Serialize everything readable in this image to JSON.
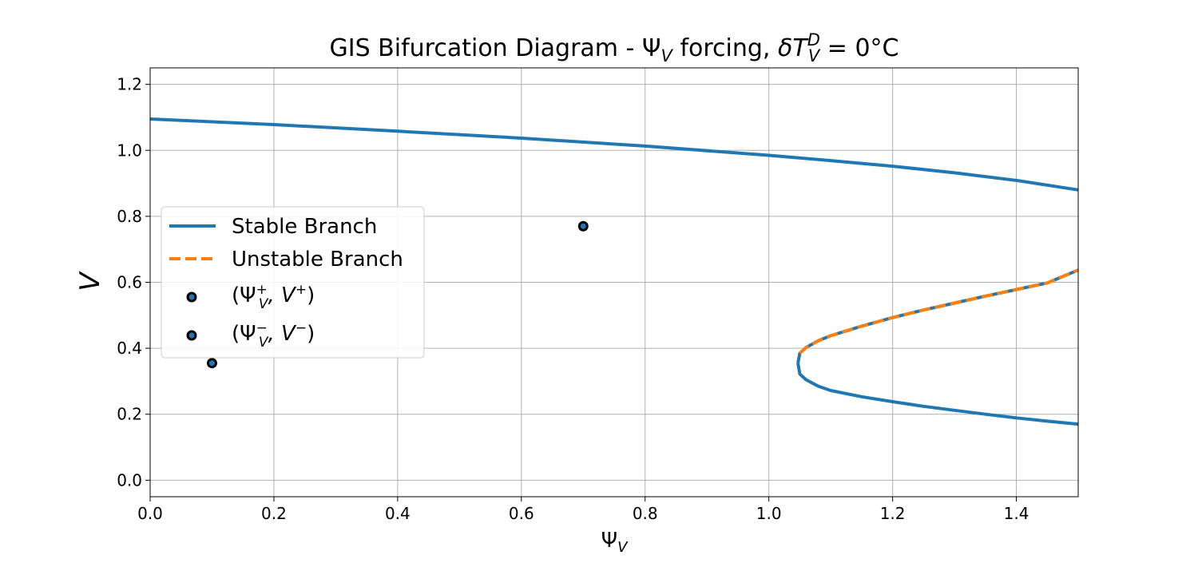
{
  "chart_data": {
    "type": "line",
    "title": "GIS Bifurcation Diagram - Ψ_V forcing, δT_V^D = 0°C",
    "title_parts": {
      "prefix": "GIS Bifurcation Diagram - ",
      "psi": "Ψ",
      "psi_sub": "V",
      "mid": " forcing, ",
      "delta": "δ",
      "T": "T",
      "T_sup": "D",
      "T_sub": "V",
      "rest": " = 0°C"
    },
    "xlabel": "Ψ_V",
    "xlabel_parts": {
      "main": "Ψ",
      "sub": "V"
    },
    "ylabel": "V",
    "xlim": [
      0.0,
      1.5
    ],
    "ylim": [
      -0.05,
      1.25
    ],
    "xticks": [
      0.0,
      0.2,
      0.4,
      0.6,
      0.8,
      1.0,
      1.2,
      1.4
    ],
    "xtick_labels": [
      "0.0",
      "0.2",
      "0.4",
      "0.6",
      "0.8",
      "1.0",
      "1.2",
      "1.4"
    ],
    "yticks": [
      0.0,
      0.2,
      0.4,
      0.6,
      0.8,
      1.0,
      1.2
    ],
    "ytick_labels": [
      "0.0",
      "0.2",
      "0.4",
      "0.6",
      "0.8",
      "1.0",
      "1.2"
    ],
    "grid": true,
    "legend_position": "center-left",
    "colors": {
      "stable": "#1f77b4",
      "unstable": "#ff7f0e",
      "points": "#000000"
    },
    "series": [
      {
        "name": "Stable Branch",
        "style": "solid",
        "segments": [
          {
            "x": [
              0.0,
              0.2,
              0.4,
              0.6,
              0.8,
              1.0,
              1.1,
              1.2,
              1.3,
              1.4,
              1.5
            ],
            "y": [
              1.095,
              1.078,
              1.058,
              1.037,
              1.013,
              0.985,
              0.969,
              0.952,
              0.932,
              0.909,
              0.88
            ]
          },
          {
            "x": [
              1.047,
              1.05,
              1.06,
              1.08,
              1.1,
              1.15,
              1.2,
              1.25,
              1.3,
              1.35,
              1.4,
              1.45,
              1.5
            ],
            "y": [
              0.355,
              0.322,
              0.305,
              0.285,
              0.272,
              0.253,
              0.238,
              0.224,
              0.212,
              0.2,
              0.189,
              0.179,
              0.17
            ]
          },
          {
            "x": [
              1.047,
              1.05,
              1.06,
              1.08,
              1.1,
              1.15,
              1.2,
              1.25,
              1.3,
              1.35,
              1.4,
              1.45,
              1.5
            ],
            "y": [
              0.355,
              0.385,
              0.402,
              0.423,
              0.438,
              0.467,
              0.493,
              0.516,
              0.537,
              0.558,
              0.578,
              0.598,
              0.637
            ]
          }
        ]
      },
      {
        "name": "Unstable Branch",
        "style": "dashed",
        "segments": [
          {
            "x": [
              1.05,
              1.06,
              1.08,
              1.1,
              1.15,
              1.2,
              1.25,
              1.3,
              1.35,
              1.4,
              1.45,
              1.5
            ],
            "y": [
              0.385,
              0.402,
              0.423,
              0.438,
              0.467,
              0.493,
              0.516,
              0.537,
              0.558,
              0.578,
              0.598,
              0.637
            ]
          }
        ]
      }
    ],
    "points": [
      {
        "label": "(Ψ_V^+, V^+)",
        "x": 0.7,
        "y": 0.77
      },
      {
        "label": "(Ψ_V^-, V^-)",
        "x": 0.1,
        "y": 0.355
      }
    ],
    "legend": [
      {
        "label": "Stable Branch",
        "kind": "line-solid"
      },
      {
        "label": "Unstable Branch",
        "kind": "line-dashed"
      },
      {
        "label": "(Ψ_V^+, V^+)",
        "kind": "marker",
        "parts": {
          "open": "(Ψ",
          "sub": "V",
          "sup": "+",
          "mid": ", V",
          "sup2": "+",
          "close": ")"
        }
      },
      {
        "label": "(Ψ_V^-, V^-)",
        "kind": "marker",
        "parts": {
          "open": "(Ψ",
          "sub": "V",
          "sup": "−",
          "mid": ", V",
          "sup2": "−",
          "close": ")"
        }
      }
    ]
  }
}
